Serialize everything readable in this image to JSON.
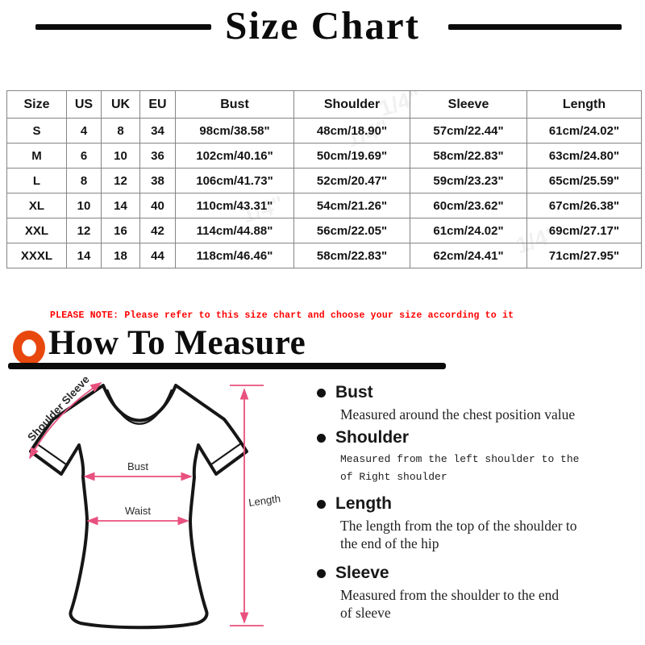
{
  "page_title": "Size Chart",
  "size_table": {
    "headers": [
      "Size",
      "US",
      "UK",
      "EU",
      "Bust",
      "Shoulder",
      "Sleeve",
      "Length"
    ],
    "rows": [
      [
        "S",
        "4",
        "8",
        "34",
        "98cm/38.58\"",
        "48cm/18.90\"",
        "57cm/22.44\"",
        "61cm/24.02\""
      ],
      [
        "M",
        "6",
        "10",
        "36",
        "102cm/40.16\"",
        "50cm/19.69\"",
        "58cm/22.83\"",
        "63cm/24.80\""
      ],
      [
        "L",
        "8",
        "12",
        "38",
        "106cm/41.73\"",
        "52cm/20.47\"",
        "59cm/23.23\"",
        "65cm/25.59\""
      ],
      [
        "XL",
        "10",
        "14",
        "40",
        "110cm/43.31\"",
        "54cm/21.26\"",
        "60cm/23.62\"",
        "67cm/26.38\""
      ],
      [
        "XXL",
        "12",
        "16",
        "42",
        "114cm/44.88\"",
        "56cm/22.05\"",
        "61cm/24.02\"",
        "69cm/27.17\""
      ],
      [
        "XXXL",
        "14",
        "18",
        "44",
        "118cm/46.46\"",
        "58cm/22.83\"",
        "62cm/24.41\"",
        "71cm/27.95\""
      ]
    ]
  },
  "note": "PLEASE NOTE: Please refer to this size chart and choose your size according to it",
  "how_to_measure_heading": "How To Measure",
  "diagram_labels": {
    "shoulder_sleeve": "Shoulder Sleeve",
    "bust": "Bust",
    "waist": "Waist",
    "length": "Length"
  },
  "measure_guide": [
    {
      "term": "Bust",
      "style": "serif",
      "description_lines": [
        "Measured around the chest position value"
      ]
    },
    {
      "term": "Shoulder",
      "style": "mono",
      "description_lines": [
        "Measured from the left shoulder to the",
        "of Right shoulder"
      ]
    },
    {
      "term": "Length",
      "style": "serif",
      "description_lines": [
        "The length from the top of the shoulder to",
        "the end of the hip"
      ]
    },
    {
      "term": "Sleeve",
      "style": "serif",
      "description_lines": [
        "Measured from the shoulder to the end",
        "of sleeve"
      ]
    }
  ],
  "watermark_text": "1/4\"",
  "colors": {
    "accent_pink": "#e8517e",
    "accent_orange": "#e8480e",
    "note_red": "#ff0000",
    "table_border": "#858585",
    "ink": "#0b0b0b"
  }
}
